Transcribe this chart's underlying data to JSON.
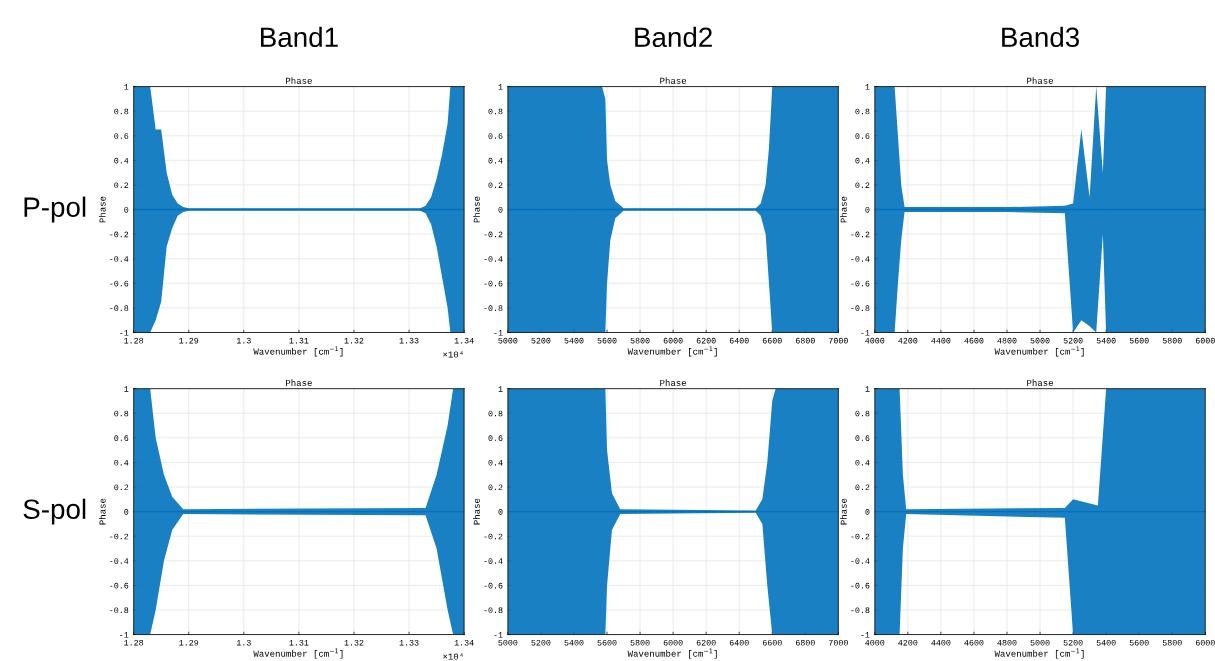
{
  "chart_data": [
    {
      "type": "other",
      "annotations": [
        "Band1",
        "Band2",
        "Band3"
      ]
    },
    {
      "type": "other",
      "annotations": [
        "P-pol",
        "S-pol"
      ]
    },
    {
      "type": "line",
      "title": "Phase",
      "xlabel": "Wavenumber [cm$^{−1}$]",
      "ylabel": "Phase",
      "annotations": [
        "×10⁴"
      ],
      "grid": true,
      "xlim": [
        1.28,
        1.34
      ],
      "ylim": [
        -1,
        1
      ],
      "xticks": [
        1.28,
        1.29,
        1.3,
        1.31,
        1.32,
        1.33,
        1.34
      ],
      "yticks": [
        -1,
        -0.8,
        -0.6,
        -0.4,
        -0.2,
        0,
        0.2,
        0.4,
        0.6,
        0.8,
        1
      ],
      "series": [
        {
          "color": "#0072bd",
          "x": [
            1.28,
            1.283,
            1.284,
            1.285,
            1.286,
            1.287,
            1.288,
            1.289,
            1.29,
            1.332,
            1.333,
            1.334,
            1.335,
            1.336,
            1.337,
            1.3375,
            1.34
          ],
          "values": [
            0,
            0,
            0,
            0,
            0,
            0,
            0,
            0,
            0,
            0,
            0,
            0,
            0,
            0,
            0,
            0,
            0
          ],
          "lower": [
            -1,
            -1,
            -0.9,
            -0.75,
            -0.3,
            -0.15,
            -0.05,
            -0.02,
            -0.01,
            -0.01,
            -0.03,
            -0.12,
            -0.3,
            -0.55,
            -0.8,
            -1,
            -1
          ],
          "upper": [
            1,
            1,
            0.65,
            0.65,
            0.3,
            0.12,
            0.05,
            0.02,
            0.01,
            0.01,
            0.03,
            0.1,
            0.25,
            0.45,
            0.7,
            1,
            1
          ]
        }
      ]
    },
    {
      "type": "line",
      "title": "Phase",
      "xlabel": "Wavenumber [cm$^{−1}$]",
      "ylabel": "Phase",
      "grid": true,
      "xlim": [
        5000,
        7000
      ],
      "ylim": [
        -1,
        1
      ],
      "xticks": [
        5000,
        5200,
        5400,
        5600,
        5800,
        6000,
        6200,
        6400,
        6600,
        6800,
        7000
      ],
      "yticks": [
        -1,
        -0.8,
        -0.6,
        -0.4,
        -0.2,
        0,
        0.2,
        0.4,
        0.6,
        0.8,
        1
      ],
      "series": [
        {
          "color": "#0072bd",
          "x": [
            5000,
            5570,
            5590,
            5600,
            5620,
            5650,
            5700,
            6500,
            6530,
            6560,
            6580,
            6600,
            7000
          ],
          "values": [
            0,
            0,
            0,
            0,
            0,
            0,
            0,
            0,
            0,
            0,
            0,
            0,
            0
          ],
          "lower": [
            -1,
            -1,
            -1,
            -0.6,
            -0.25,
            -0.07,
            -0.01,
            -0.01,
            -0.05,
            -0.2,
            -0.6,
            -1,
            -1
          ],
          "upper": [
            1,
            1,
            0.9,
            0.4,
            0.2,
            0.07,
            0.01,
            0.01,
            0.05,
            0.2,
            0.5,
            1,
            1
          ]
        }
      ]
    },
    {
      "type": "line",
      "title": "Phase",
      "xlabel": "Wavenumber [cm$^{−1}$]",
      "ylabel": "Phase",
      "grid": true,
      "xlim": [
        4000,
        6000
      ],
      "ylim": [
        -1,
        1
      ],
      "xticks": [
        4000,
        4200,
        4400,
        4600,
        4800,
        5000,
        5200,
        5400,
        5600,
        5800,
        6000
      ],
      "yticks": [
        -1,
        -0.8,
        -0.6,
        -0.4,
        -0.2,
        0,
        0.2,
        0.4,
        0.6,
        0.8,
        1
      ],
      "series": [
        {
          "color": "#0072bd",
          "x": [
            4000,
            4120,
            4140,
            4160,
            4180,
            4800,
            5150,
            5200,
            5250,
            5300,
            5340,
            5380,
            5400,
            6000
          ],
          "values": [
            0,
            0,
            0,
            0,
            0,
            0,
            0,
            0,
            0,
            0,
            0,
            0,
            0,
            0
          ],
          "lower": [
            -1,
            -1,
            -0.6,
            -0.25,
            -0.02,
            -0.02,
            -0.03,
            -1,
            -0.9,
            -0.95,
            -1,
            -0.2,
            -1,
            -1
          ],
          "upper": [
            1,
            1,
            0.6,
            0.2,
            0.02,
            0.02,
            0.03,
            0.05,
            0.65,
            0.1,
            1,
            0.3,
            1,
            1
          ]
        }
      ]
    },
    {
      "type": "line",
      "title": "Phase",
      "xlabel": "Wavenumber [cm$^{−1}$]",
      "ylabel": "Phase",
      "annotations": [
        "×10⁴"
      ],
      "grid": true,
      "xlim": [
        1.28,
        1.34
      ],
      "ylim": [
        -1,
        1
      ],
      "xticks": [
        1.28,
        1.29,
        1.3,
        1.31,
        1.32,
        1.33,
        1.34
      ],
      "yticks": [
        -1,
        -0.8,
        -0.6,
        -0.4,
        -0.2,
        0,
        0.2,
        0.4,
        0.6,
        0.8,
        1
      ],
      "series": [
        {
          "color": "#0072bd",
          "x": [
            1.28,
            1.283,
            1.284,
            1.2855,
            1.287,
            1.289,
            1.333,
            1.335,
            1.337,
            1.338,
            1.34
          ],
          "values": [
            0,
            0,
            0,
            0,
            0,
            0,
            0,
            0,
            0,
            0,
            0
          ],
          "lower": [
            -1,
            -1,
            -0.8,
            -0.4,
            -0.15,
            -0.02,
            -0.03,
            -0.3,
            -0.8,
            -1,
            -1
          ],
          "upper": [
            1,
            1,
            0.6,
            0.3,
            0.12,
            0.02,
            0.03,
            0.3,
            0.7,
            1,
            1
          ]
        }
      ]
    },
    {
      "type": "line",
      "title": "Phase",
      "xlabel": "Wavenumber [cm$^{−1}$]",
      "ylabel": "Phase",
      "grid": true,
      "xlim": [
        5000,
        7000
      ],
      "ylim": [
        -1,
        1
      ],
      "xticks": [
        5000,
        5200,
        5400,
        5600,
        5800,
        6000,
        6200,
        6400,
        6600,
        6800,
        7000
      ],
      "yticks": [
        -1,
        -0.8,
        -0.6,
        -0.4,
        -0.2,
        0,
        0.2,
        0.4,
        0.6,
        0.8,
        1
      ],
      "series": [
        {
          "color": "#0072bd",
          "x": [
            5000,
            5590,
            5600,
            5630,
            5680,
            6500,
            6540,
            6570,
            6600,
            6620,
            7000
          ],
          "values": [
            0,
            0,
            0,
            0,
            0,
            0,
            0,
            0,
            0,
            0,
            0
          ],
          "lower": [
            -1,
            -1,
            -0.6,
            -0.15,
            -0.02,
            -0.01,
            -0.1,
            -0.6,
            -1,
            -1,
            -1
          ],
          "upper": [
            1,
            1,
            0.5,
            0.15,
            0.02,
            0.01,
            0.1,
            0.4,
            0.9,
            1,
            1
          ]
        }
      ]
    },
    {
      "type": "line",
      "title": "Phase",
      "xlabel": "Wavenumber [cm$^{−1}$]",
      "ylabel": "Phase",
      "grid": true,
      "xlim": [
        4000,
        6000
      ],
      "ylim": [
        -1,
        1
      ],
      "xticks": [
        4000,
        4200,
        4400,
        4600,
        4800,
        5000,
        5200,
        5400,
        5600,
        5800,
        6000
      ],
      "yticks": [
        -1,
        -0.8,
        -0.6,
        -0.4,
        -0.2,
        0,
        0.2,
        0.4,
        0.6,
        0.8,
        1
      ],
      "series": [
        {
          "color": "#0072bd",
          "x": [
            4000,
            4150,
            4170,
            4190,
            5150,
            5200,
            5350,
            5400,
            6000
          ],
          "values": [
            0,
            0,
            0,
            0,
            0,
            0,
            0,
            0,
            0
          ],
          "lower": [
            -1,
            -1,
            -0.3,
            -0.02,
            -0.05,
            -1,
            -1,
            -1,
            -1
          ],
          "upper": [
            1,
            1,
            0.3,
            0.02,
            0.03,
            0.1,
            0.05,
            1,
            1
          ]
        }
      ]
    }
  ]
}
